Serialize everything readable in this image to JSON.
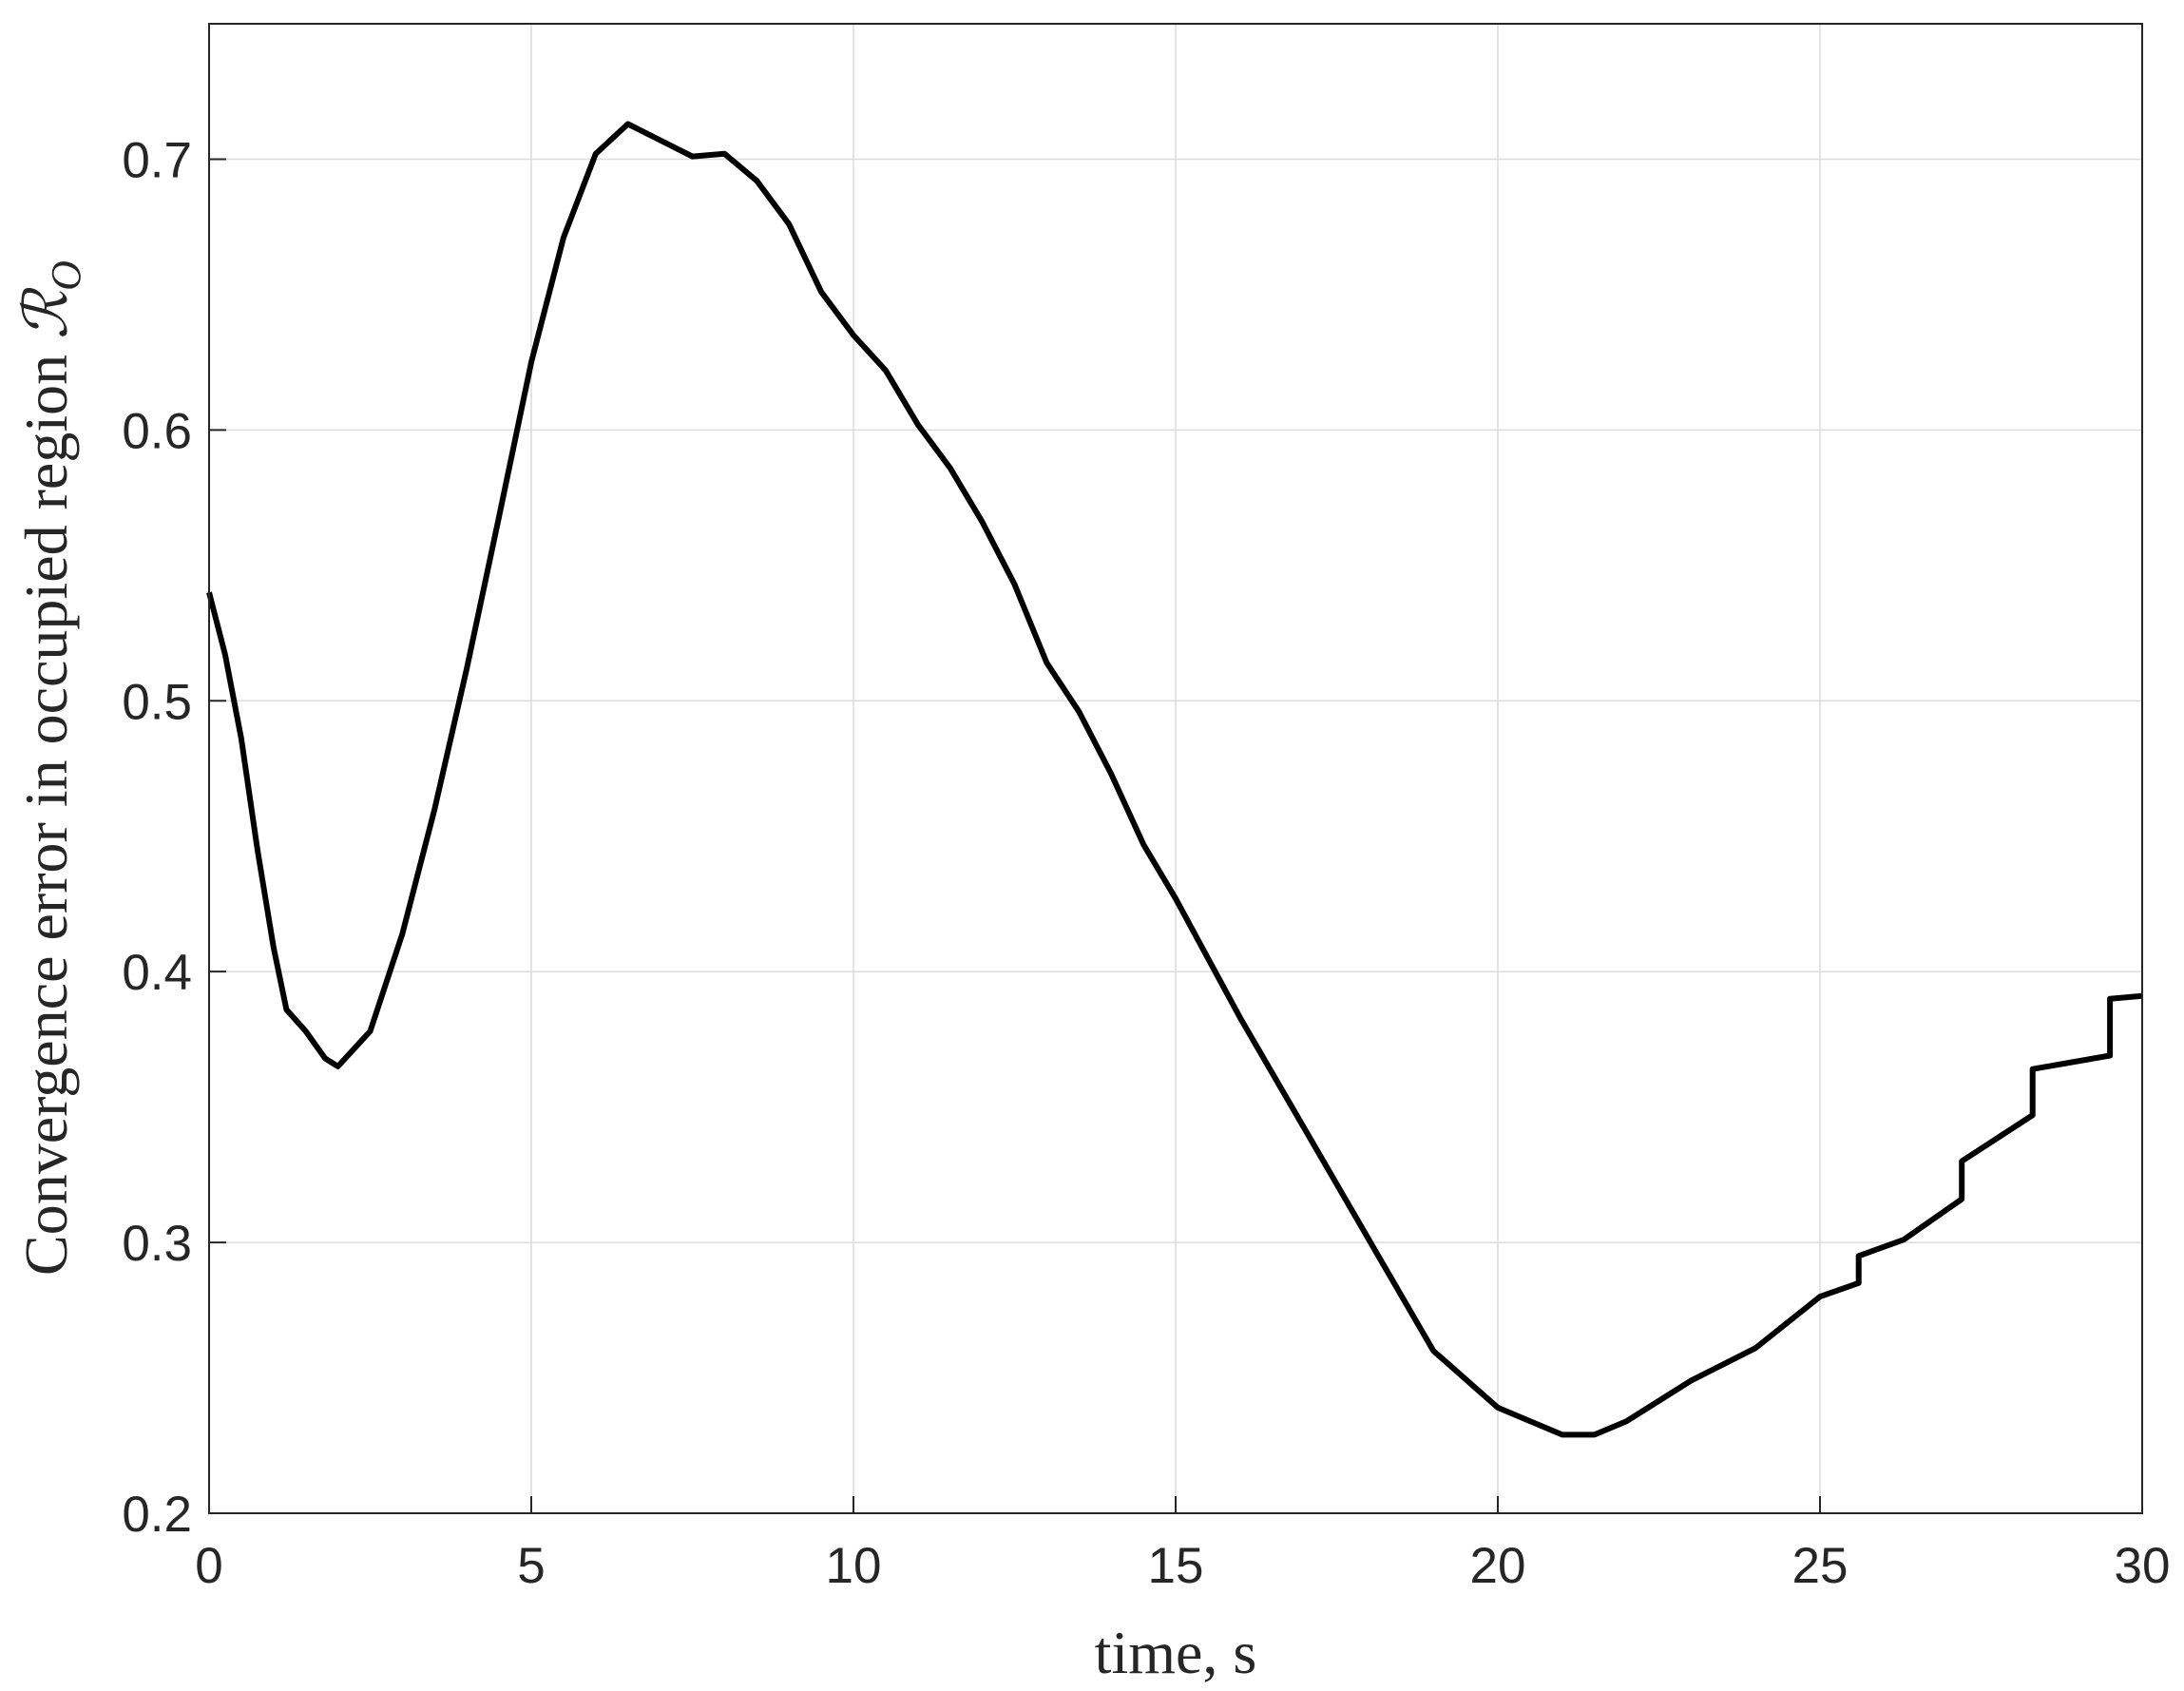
{
  "chart_data": {
    "type": "line",
    "xlabel": "time, s",
    "ylabel": "Convergence error in occupied region ",
    "ylabel_symbol": "ℛ",
    "ylabel_subscript": "O",
    "x": [
      0,
      0.25,
      0.5,
      0.75,
      1.0,
      1.2,
      1.5,
      1.8,
      2.0,
      2.5,
      3.0,
      3.5,
      4.0,
      4.5,
      5.0,
      5.5,
      6.0,
      6.5,
      7.0,
      7.5,
      8.0,
      8.5,
      9.0,
      9.5,
      10.0,
      10.5,
      11.0,
      11.5,
      12.0,
      12.5,
      13.0,
      13.5,
      14.0,
      14.5,
      15.0,
      16.0,
      17.0,
      18.0,
      19.0,
      20.0,
      21.0,
      21.5,
      22.0,
      23.0,
      24.0,
      25.0,
      25.6,
      25.6,
      26.3,
      27.2,
      27.2,
      28.3,
      28.3,
      29.5,
      29.5,
      30.0
    ],
    "series": [
      {
        "color": "#000000",
        "values": [
          0.54,
          0.517,
          0.486,
          0.445,
          0.409,
          0.386,
          0.378,
          0.368,
          0.365,
          0.378,
          0.414,
          0.46,
          0.512,
          0.568,
          0.625,
          0.671,
          0.702,
          0.713,
          0.707,
          0.701,
          0.702,
          0.692,
          0.676,
          0.651,
          0.635,
          0.622,
          0.602,
          0.586,
          0.566,
          0.543,
          0.514,
          0.496,
          0.473,
          0.447,
          0.427,
          0.383,
          0.342,
          0.301,
          0.26,
          0.239,
          0.229,
          0.229,
          0.234,
          0.249,
          0.261,
          0.28,
          0.285,
          0.295,
          0.301,
          0.316,
          0.33,
          0.347,
          0.364,
          0.369,
          0.39,
          0.391
        ]
      }
    ],
    "xlim": [
      0,
      30
    ],
    "xticks": [
      0,
      5,
      10,
      15,
      20,
      25,
      30
    ],
    "ylim": [
      0.2,
      0.75
    ],
    "yticks": [
      0.2,
      0.3,
      0.4,
      0.5,
      0.6,
      0.7
    ],
    "grid": true
  }
}
